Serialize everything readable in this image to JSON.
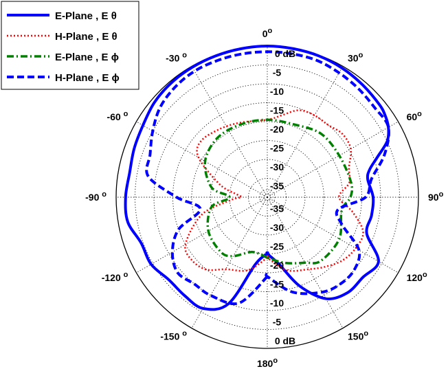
{
  "chart_data": {
    "type": "polar-line",
    "title": "",
    "r_unit": "dB",
    "r_range": [
      -40,
      0
    ],
    "r_ticks": [
      {
        "value": 0,
        "label": "0 dB"
      },
      {
        "value": -5,
        "label": "-5"
      },
      {
        "value": -10,
        "label": "-10"
      },
      {
        "value": -15,
        "label": "-15"
      },
      {
        "value": -20,
        "label": "-20"
      },
      {
        "value": -25,
        "label": "-25"
      },
      {
        "value": -30,
        "label": "-30"
      },
      {
        "value": -35,
        "label": "-35"
      }
    ],
    "angle_ticks": [
      {
        "angle": 0,
        "label": "0",
        "sup": "o"
      },
      {
        "angle": 30,
        "label": "30",
        "sup": "o"
      },
      {
        "angle": 60,
        "label": "60",
        "sup": "o"
      },
      {
        "angle": 90,
        "label": "90",
        "sup": "o"
      },
      {
        "angle": 120,
        "label": "120",
        "sup": "o"
      },
      {
        "angle": 150,
        "label": "150",
        "sup": "o"
      },
      {
        "angle": 180,
        "label": "180",
        "sup": "o"
      },
      {
        "angle": -150,
        "label": "-150",
        "sup": "o"
      },
      {
        "angle": -120,
        "label": "-120",
        "sup": "o"
      },
      {
        "angle": -90,
        "label": "-90",
        "sup": "o"
      },
      {
        "angle": -60,
        "label": "-60",
        "sup": "o"
      },
      {
        "angle": -30,
        "label": "-30",
        "sup": "o"
      }
    ],
    "grid": true,
    "legend_position": "top-left",
    "series": [
      {
        "name": "E-Plane , E θ",
        "color": "#0000ff",
        "style": "solid",
        "points": [
          [
            -180,
            -25
          ],
          [
            -170,
            -22
          ],
          [
            -160,
            -10
          ],
          [
            -150,
            -6
          ],
          [
            -140,
            -6
          ],
          [
            -130,
            -6
          ],
          [
            -120,
            -4.5
          ],
          [
            -110,
            -4.5
          ],
          [
            -100,
            -2.5
          ],
          [
            -90,
            -2.5
          ],
          [
            -80,
            -3
          ],
          [
            -70,
            -2.5
          ],
          [
            -60,
            -2
          ],
          [
            -50,
            -1
          ],
          [
            -40,
            -0.5
          ],
          [
            -30,
            -0.3
          ],
          [
            -20,
            -0.2
          ],
          [
            -10,
            -0.1
          ],
          [
            0,
            0
          ],
          [
            10,
            -0.1
          ],
          [
            20,
            -0.2
          ],
          [
            30,
            -0.5
          ],
          [
            40,
            -1
          ],
          [
            50,
            -1.5
          ],
          [
            55,
            -2
          ],
          [
            60,
            -3
          ],
          [
            65,
            -5
          ],
          [
            70,
            -9
          ],
          [
            75,
            -12
          ],
          [
            80,
            -13
          ],
          [
            90,
            -12
          ],
          [
            100,
            -12
          ],
          [
            110,
            -12
          ],
          [
            120,
            -6
          ],
          [
            130,
            -7
          ],
          [
            140,
            -7
          ],
          [
            150,
            -9
          ],
          [
            160,
            -15
          ],
          [
            170,
            -22
          ],
          [
            180,
            -25
          ]
        ]
      },
      {
        "name": "H-Plane , E θ",
        "color": "#ff0000",
        "style": "dotted",
        "points": [
          [
            -180,
            -24
          ],
          [
            -165,
            -20
          ],
          [
            -150,
            -18
          ],
          [
            -140,
            -15
          ],
          [
            -130,
            -14
          ],
          [
            -120,
            -15
          ],
          [
            -105,
            -22
          ],
          [
            -95,
            -30
          ],
          [
            -90,
            -33
          ],
          [
            -85,
            -32
          ],
          [
            -75,
            -27
          ],
          [
            -60,
            -19
          ],
          [
            -50,
            -17
          ],
          [
            -35,
            -18
          ],
          [
            -20,
            -19
          ],
          [
            0,
            -19.5
          ],
          [
            10,
            -18
          ],
          [
            20,
            -15.5
          ],
          [
            30,
            -15
          ],
          [
            40,
            -15
          ],
          [
            50,
            -14
          ],
          [
            60,
            -14.5
          ],
          [
            70,
            -17
          ],
          [
            80,
            -18
          ],
          [
            90,
            -21
          ],
          [
            100,
            -17
          ],
          [
            110,
            -13
          ],
          [
            120,
            -13
          ],
          [
            130,
            -14
          ],
          [
            140,
            -16
          ],
          [
            150,
            -18
          ],
          [
            165,
            -20
          ],
          [
            180,
            -24
          ]
        ]
      },
      {
        "name": "E-Plane , E ϕ",
        "color": "#008000",
        "style": "dashdot",
        "points": [
          [
            -180,
            -24
          ],
          [
            -165,
            -25
          ],
          [
            -150,
            -22
          ],
          [
            -140,
            -21
          ],
          [
            -120,
            -22
          ],
          [
            -100,
            -25
          ],
          [
            -90,
            -30
          ],
          [
            -80,
            -25
          ],
          [
            -60,
            -21
          ],
          [
            -40,
            -19.5
          ],
          [
            -20,
            -19.5
          ],
          [
            0,
            -19.5
          ],
          [
            20,
            -19.5
          ],
          [
            40,
            -18
          ],
          [
            60,
            -18
          ],
          [
            80,
            -17.5
          ],
          [
            90,
            -18
          ],
          [
            100,
            -20
          ],
          [
            120,
            -18
          ],
          [
            140,
            -18
          ],
          [
            150,
            -20
          ],
          [
            165,
            -22
          ],
          [
            180,
            -24
          ]
        ]
      },
      {
        "name": "H-Plane , E ϕ",
        "color": "#0000ff",
        "style": "dashed",
        "points": [
          [
            -180,
            -19
          ],
          [
            -165,
            -11
          ],
          [
            -150,
            -10
          ],
          [
            -140,
            -10
          ],
          [
            -130,
            -9
          ],
          [
            -120,
            -11
          ],
          [
            -110,
            -15
          ],
          [
            -100,
            -22
          ],
          [
            -90,
            -16
          ],
          [
            -80,
            -8
          ],
          [
            -70,
            -7
          ],
          [
            -60,
            -5
          ],
          [
            -50,
            -3
          ],
          [
            -40,
            -2
          ],
          [
            -30,
            -1.5
          ],
          [
            -20,
            -1.5
          ],
          [
            -10,
            -1.5
          ],
          [
            0,
            -1.5
          ],
          [
            10,
            -1.5
          ],
          [
            20,
            -1.5
          ],
          [
            30,
            -2
          ],
          [
            40,
            -2.5
          ],
          [
            50,
            -3
          ],
          [
            60,
            -3
          ],
          [
            70,
            -7
          ],
          [
            80,
            -12
          ],
          [
            90,
            -14
          ],
          [
            100,
            -21
          ],
          [
            110,
            -19
          ],
          [
            120,
            -12
          ],
          [
            130,
            -10
          ],
          [
            140,
            -10
          ],
          [
            150,
            -11
          ],
          [
            165,
            -14
          ],
          [
            180,
            -19
          ]
        ]
      }
    ]
  }
}
